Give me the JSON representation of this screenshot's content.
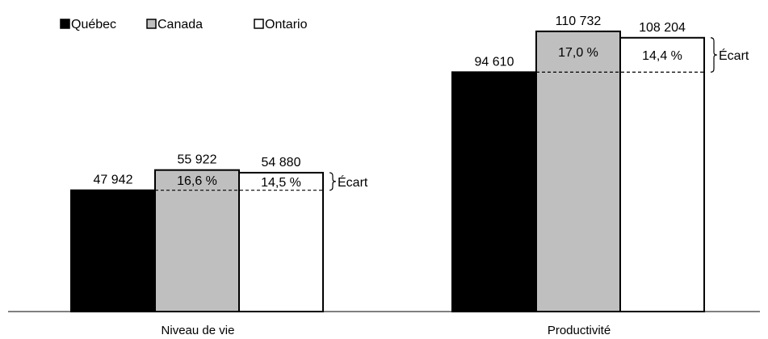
{
  "chart_data": {
    "type": "bar",
    "categories": [
      "Niveau de vie",
      "Productivité"
    ],
    "series": [
      {
        "name": "Québec",
        "values": [
          47942,
          94610
        ],
        "labels": [
          "47 942",
          "94 610"
        ],
        "color": "#000000"
      },
      {
        "name": "Canada",
        "values": [
          55922,
          110732
        ],
        "labels": [
          "55 922",
          "110 732"
        ],
        "color": "#bfbfbf"
      },
      {
        "name": "Ontario",
        "values": [
          54880,
          108204
        ],
        "labels": [
          "54 880",
          "108 204"
        ],
        "color": "#ffffff"
      }
    ],
    "gaps": [
      {
        "category": "Niveau de vie",
        "canada_pct": "16,6 %",
        "ontario_pct": "14,5 %",
        "label": "Écart"
      },
      {
        "category": "Productivité",
        "canada_pct": "17,0 %",
        "ontario_pct": "14,4 %",
        "label": "Écart"
      }
    ],
    "legend_position": "top-left",
    "ylim": [
      0,
      111000
    ],
    "grid": false
  }
}
